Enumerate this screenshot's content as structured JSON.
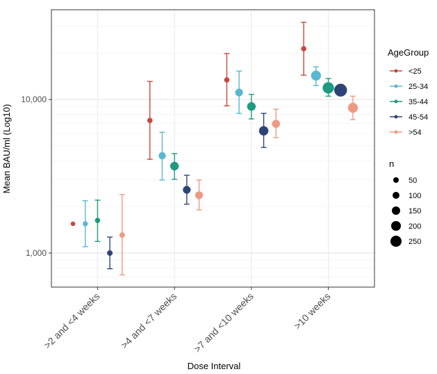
{
  "chart_data": {
    "type": "scatter",
    "subtype": "dot-with-error-bars",
    "title": "",
    "xlabel": "Dose Interval",
    "ylabel": "Mean BAU/ml (Log10)",
    "yscale": "log10",
    "ylim": [
      600,
      38400
    ],
    "y_ticks": [
      1000,
      10000
    ],
    "y_tick_labels": [
      "1,000",
      "10,000"
    ],
    "grid": true,
    "categories": [
      ">2 and <4 weeks",
      ">4 and <7 weeks",
      ">7 and <10 weeks",
      ">10 weeks"
    ],
    "legend_position": "right",
    "color_legend": {
      "title": "AgeGroup"
    },
    "size_legend": {
      "title": "n",
      "values": [
        50,
        100,
        150,
        200,
        250
      ],
      "labels": [
        "50",
        "100",
        "150",
        "200",
        "250"
      ]
    },
    "series": [
      {
        "name": "<25",
        "color": "#C8473D",
        "mean": [
          1550,
          7300,
          13400,
          21400
        ],
        "lower": [
          null,
          4080,
          9100,
          14400
        ],
        "upper": [
          null,
          13100,
          19900,
          31800
        ],
        "n": [
          5,
          30,
          30,
          30
        ]
      },
      {
        "name": "25-34",
        "color": "#59B8CF",
        "mean": [
          1550,
          4300,
          11100,
          14300
        ],
        "lower": [
          1100,
          2990,
          8120,
          12300
        ],
        "upper": [
          2190,
          6120,
          15300,
          16300
        ],
        "n": [
          25,
          100,
          120,
          200
        ]
      },
      {
        "name": "35-44",
        "color": "#1F9A7E",
        "mean": [
          1630,
          3680,
          9000,
          11900
        ],
        "lower": [
          1190,
          3020,
          7470,
          10500
        ],
        "upper": [
          2210,
          4440,
          10800,
          13700
        ],
        "n": [
          30,
          150,
          150,
          250
        ]
      },
      {
        "name": "45-54",
        "color": "#2F4476",
        "mean": [
          1000,
          2580,
          6250,
          11500
        ],
        "lower": [
          790,
          2080,
          4870,
          10600
        ],
        "upper": [
          1270,
          3210,
          8120,
          12500
        ],
        "n": [
          40,
          120,
          180,
          300
        ]
      },
      {
        "name": ">54",
        "color": "#EE9A82",
        "mean": [
          1310,
          2380,
          6940,
          8830
        ],
        "lower": [
          720,
          1910,
          5640,
          7390
        ],
        "upper": [
          2400,
          2990,
          8650,
          10500
        ],
        "n": [
          35,
          120,
          130,
          200
        ]
      }
    ]
  }
}
